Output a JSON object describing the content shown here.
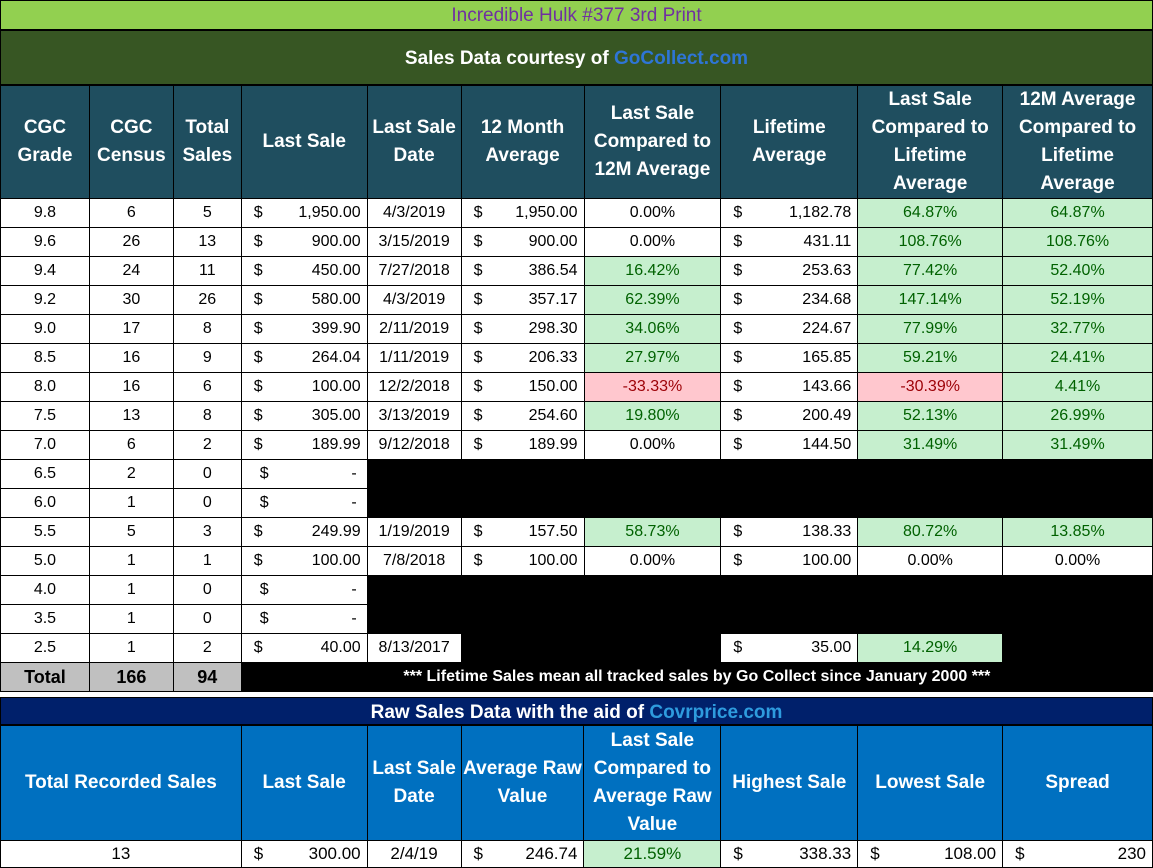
{
  "title": "Incredible Hulk #377 3rd Print",
  "subtitle": {
    "prefix": "Sales Data courtesy of ",
    "link": "GoCollect.com"
  },
  "headers": {
    "grade": "CGC Grade",
    "census": "CGC Census",
    "total_sales": "Total Sales",
    "last_sale": "Last Sale",
    "last_sale_date": "Last Sale Date",
    "avg12": "12 Month Average",
    "last_vs_12m": "Last Sale Compared to 12M Average",
    "lifetime_avg": "Lifetime Average",
    "last_vs_lifetime": "Last Sale Compared to Lifetime Average",
    "avg12_vs_lifetime": "12M Average Compared to Lifetime Average"
  },
  "currency_symbol": "$",
  "rows": [
    {
      "grade": "9.8",
      "census": "6",
      "sales": "5",
      "last_sale": "1,950.00",
      "date": "4/3/2019",
      "avg12": "1,950.00",
      "cmp12": "0.00%",
      "cmp12_style": "plain",
      "life": "1,182.78",
      "cmp_life": "64.87%",
      "cmp_life_style": "pos",
      "avg_life": "64.87%",
      "avg_life_style": "pos"
    },
    {
      "grade": "9.6",
      "census": "26",
      "sales": "13",
      "last_sale": "900.00",
      "date": "3/15/2019",
      "avg12": "900.00",
      "cmp12": "0.00%",
      "cmp12_style": "plain",
      "life": "431.11",
      "cmp_life": "108.76%",
      "cmp_life_style": "pos",
      "avg_life": "108.76%",
      "avg_life_style": "pos"
    },
    {
      "grade": "9.4",
      "census": "24",
      "sales": "11",
      "last_sale": "450.00",
      "date": "7/27/2018",
      "avg12": "386.54",
      "cmp12": "16.42%",
      "cmp12_style": "pos",
      "life": "253.63",
      "cmp_life": "77.42%",
      "cmp_life_style": "pos",
      "avg_life": "52.40%",
      "avg_life_style": "pos"
    },
    {
      "grade": "9.2",
      "census": "30",
      "sales": "26",
      "last_sale": "580.00",
      "date": "4/3/2019",
      "avg12": "357.17",
      "cmp12": "62.39%",
      "cmp12_style": "pos",
      "life": "234.68",
      "cmp_life": "147.14%",
      "cmp_life_style": "pos",
      "avg_life": "52.19%",
      "avg_life_style": "pos"
    },
    {
      "grade": "9.0",
      "census": "17",
      "sales": "8",
      "last_sale": "399.90",
      "date": "2/11/2019",
      "avg12": "298.30",
      "cmp12": "34.06%",
      "cmp12_style": "pos",
      "life": "224.67",
      "cmp_life": "77.99%",
      "cmp_life_style": "pos",
      "avg_life": "32.77%",
      "avg_life_style": "pos"
    },
    {
      "grade": "8.5",
      "census": "16",
      "sales": "9",
      "last_sale": "264.04",
      "date": "1/11/2019",
      "avg12": "206.33",
      "cmp12": "27.97%",
      "cmp12_style": "pos",
      "life": "165.85",
      "cmp_life": "59.21%",
      "cmp_life_style": "pos",
      "avg_life": "24.41%",
      "avg_life_style": "pos"
    },
    {
      "grade": "8.0",
      "census": "16",
      "sales": "6",
      "last_sale": "100.00",
      "date": "12/2/2018",
      "avg12": "150.00",
      "cmp12": "-33.33%",
      "cmp12_style": "neg",
      "life": "143.66",
      "cmp_life": "-30.39%",
      "cmp_life_style": "neg",
      "avg_life": "4.41%",
      "avg_life_style": "pos"
    },
    {
      "grade": "7.5",
      "census": "13",
      "sales": "8",
      "last_sale": "305.00",
      "date": "3/13/2019",
      "avg12": "254.60",
      "cmp12": "19.80%",
      "cmp12_style": "pos",
      "life": "200.49",
      "cmp_life": "52.13%",
      "cmp_life_style": "pos",
      "avg_life": "26.99%",
      "avg_life_style": "pos"
    },
    {
      "grade": "7.0",
      "census": "6",
      "sales": "2",
      "last_sale": "189.99",
      "date": "9/12/2018",
      "avg12": "189.99",
      "cmp12": "0.00%",
      "cmp12_style": "plain",
      "life": "144.50",
      "cmp_life": "31.49%",
      "cmp_life_style": "pos",
      "avg_life": "31.49%",
      "avg_life_style": "pos"
    },
    {
      "grade": "6.5",
      "census": "2",
      "sales": "0",
      "last_sale": "-",
      "empty": true
    },
    {
      "grade": "6.0",
      "census": "1",
      "sales": "0",
      "last_sale": "-",
      "empty": true
    },
    {
      "grade": "5.5",
      "census": "5",
      "sales": "3",
      "last_sale": "249.99",
      "date": "1/19/2019",
      "avg12": "157.50",
      "cmp12": "58.73%",
      "cmp12_style": "pos",
      "life": "138.33",
      "cmp_life": "80.72%",
      "cmp_life_style": "pos",
      "avg_life": "13.85%",
      "avg_life_style": "pos"
    },
    {
      "grade": "5.0",
      "census": "1",
      "sales": "1",
      "last_sale": "100.00",
      "date": "7/8/2018",
      "avg12": "100.00",
      "cmp12": "0.00%",
      "cmp12_style": "plain",
      "life": "100.00",
      "cmp_life": "0.00%",
      "cmp_life_style": "plain",
      "avg_life": "0.00%",
      "avg_life_style": "plain"
    },
    {
      "grade": "4.0",
      "census": "1",
      "sales": "0",
      "last_sale": "-",
      "empty": true
    },
    {
      "grade": "3.5",
      "census": "1",
      "sales": "0",
      "last_sale": "-",
      "empty": true
    },
    {
      "grade": "2.5",
      "census": "1",
      "sales": "2",
      "last_sale": "40.00",
      "date": "8/13/2017",
      "avg12": "",
      "cmp12": "",
      "cmp12_style": "blank",
      "life": "35.00",
      "cmp_life": "14.29%",
      "cmp_life_style": "pos",
      "avg_life": "",
      "avg_life_style": "blank",
      "partial": true
    }
  ],
  "total": {
    "label": "Total",
    "census": "166",
    "sales": "94",
    "note": "*** Lifetime Sales mean all tracked sales by Go Collect since January 2000 ***"
  },
  "raw_bar": {
    "prefix": "Raw Sales Data with the aid of ",
    "link": "Covrprice.com"
  },
  "raw_headers": {
    "total_recorded": "Total Recorded Sales",
    "last_sale": "Last Sale",
    "last_sale_date": "Last Sale Date",
    "avg_raw": "Average Raw Value",
    "last_vs_avg": "Last Sale Compared to Average Raw Value",
    "highest": "Highest Sale",
    "lowest": "Lowest Sale",
    "spread": "Spread"
  },
  "raw_row": {
    "total_recorded": "13",
    "last_sale": "300.00",
    "date": "2/4/19",
    "avg_raw": "246.74",
    "last_vs_avg": "21.59%",
    "highest": "338.33",
    "lowest": "108.00",
    "spread": "230"
  },
  "colors": {
    "title_bg": "#92d050",
    "title_fg": "#7030a0",
    "sub_bg": "#375623",
    "header_bg": "#1f4e5f",
    "raw_bar_bg": "#00206b",
    "raw_header_bg": "#0070c0",
    "pos_bg": "#c6efce",
    "pos_fg": "#006100",
    "neg_bg": "#ffc7ce",
    "neg_fg": "#9c0006"
  }
}
